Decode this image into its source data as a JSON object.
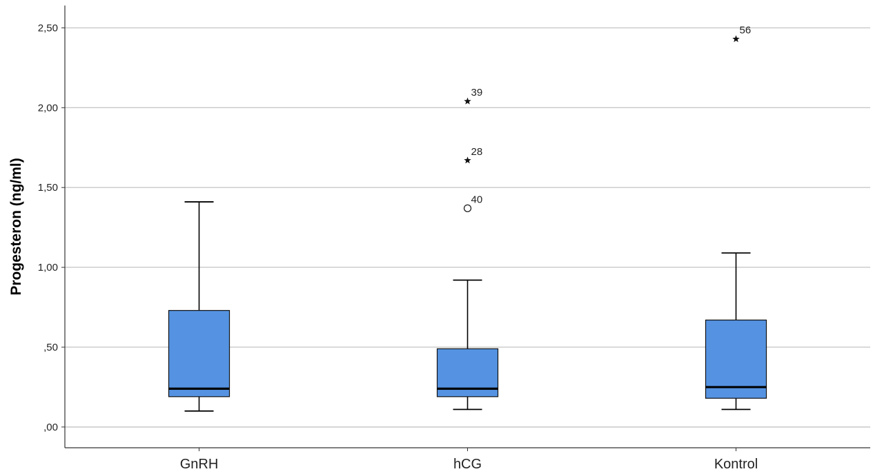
{
  "chart_data": {
    "type": "boxplot",
    "ylabel": "Progesteron (ng/ml)",
    "xlabel": "",
    "ylim": [
      -0.13,
      2.64
    ],
    "yticks": [
      0,
      0.5,
      1.0,
      1.5,
      2.0,
      2.5
    ],
    "ytick_labels": [
      ",00",
      ",50",
      "1,00",
      "1,50",
      "2,00",
      "2,50"
    ],
    "grid": "horizontal",
    "box_color": "#5593e2",
    "categories": [
      "GnRH",
      "hCG",
      "Kontrol"
    ],
    "series": [
      {
        "category": "GnRH",
        "whisker_low": 0.1,
        "q1": 0.19,
        "median": 0.24,
        "q3": 0.73,
        "whisker_high": 1.41,
        "outliers": []
      },
      {
        "category": "hCG",
        "whisker_low": 0.11,
        "q1": 0.19,
        "median": 0.24,
        "q3": 0.49,
        "whisker_high": 0.92,
        "outliers": [
          {
            "value": 1.37,
            "marker": "circle",
            "label": "40"
          },
          {
            "value": 1.67,
            "marker": "star",
            "label": "28"
          },
          {
            "value": 2.04,
            "marker": "star",
            "label": "39"
          }
        ]
      },
      {
        "category": "Kontrol",
        "whisker_low": 0.11,
        "q1": 0.18,
        "median": 0.25,
        "q3": 0.67,
        "whisker_high": 1.09,
        "outliers": [
          {
            "value": 2.43,
            "marker": "star",
            "label": "56"
          }
        ]
      }
    ]
  }
}
